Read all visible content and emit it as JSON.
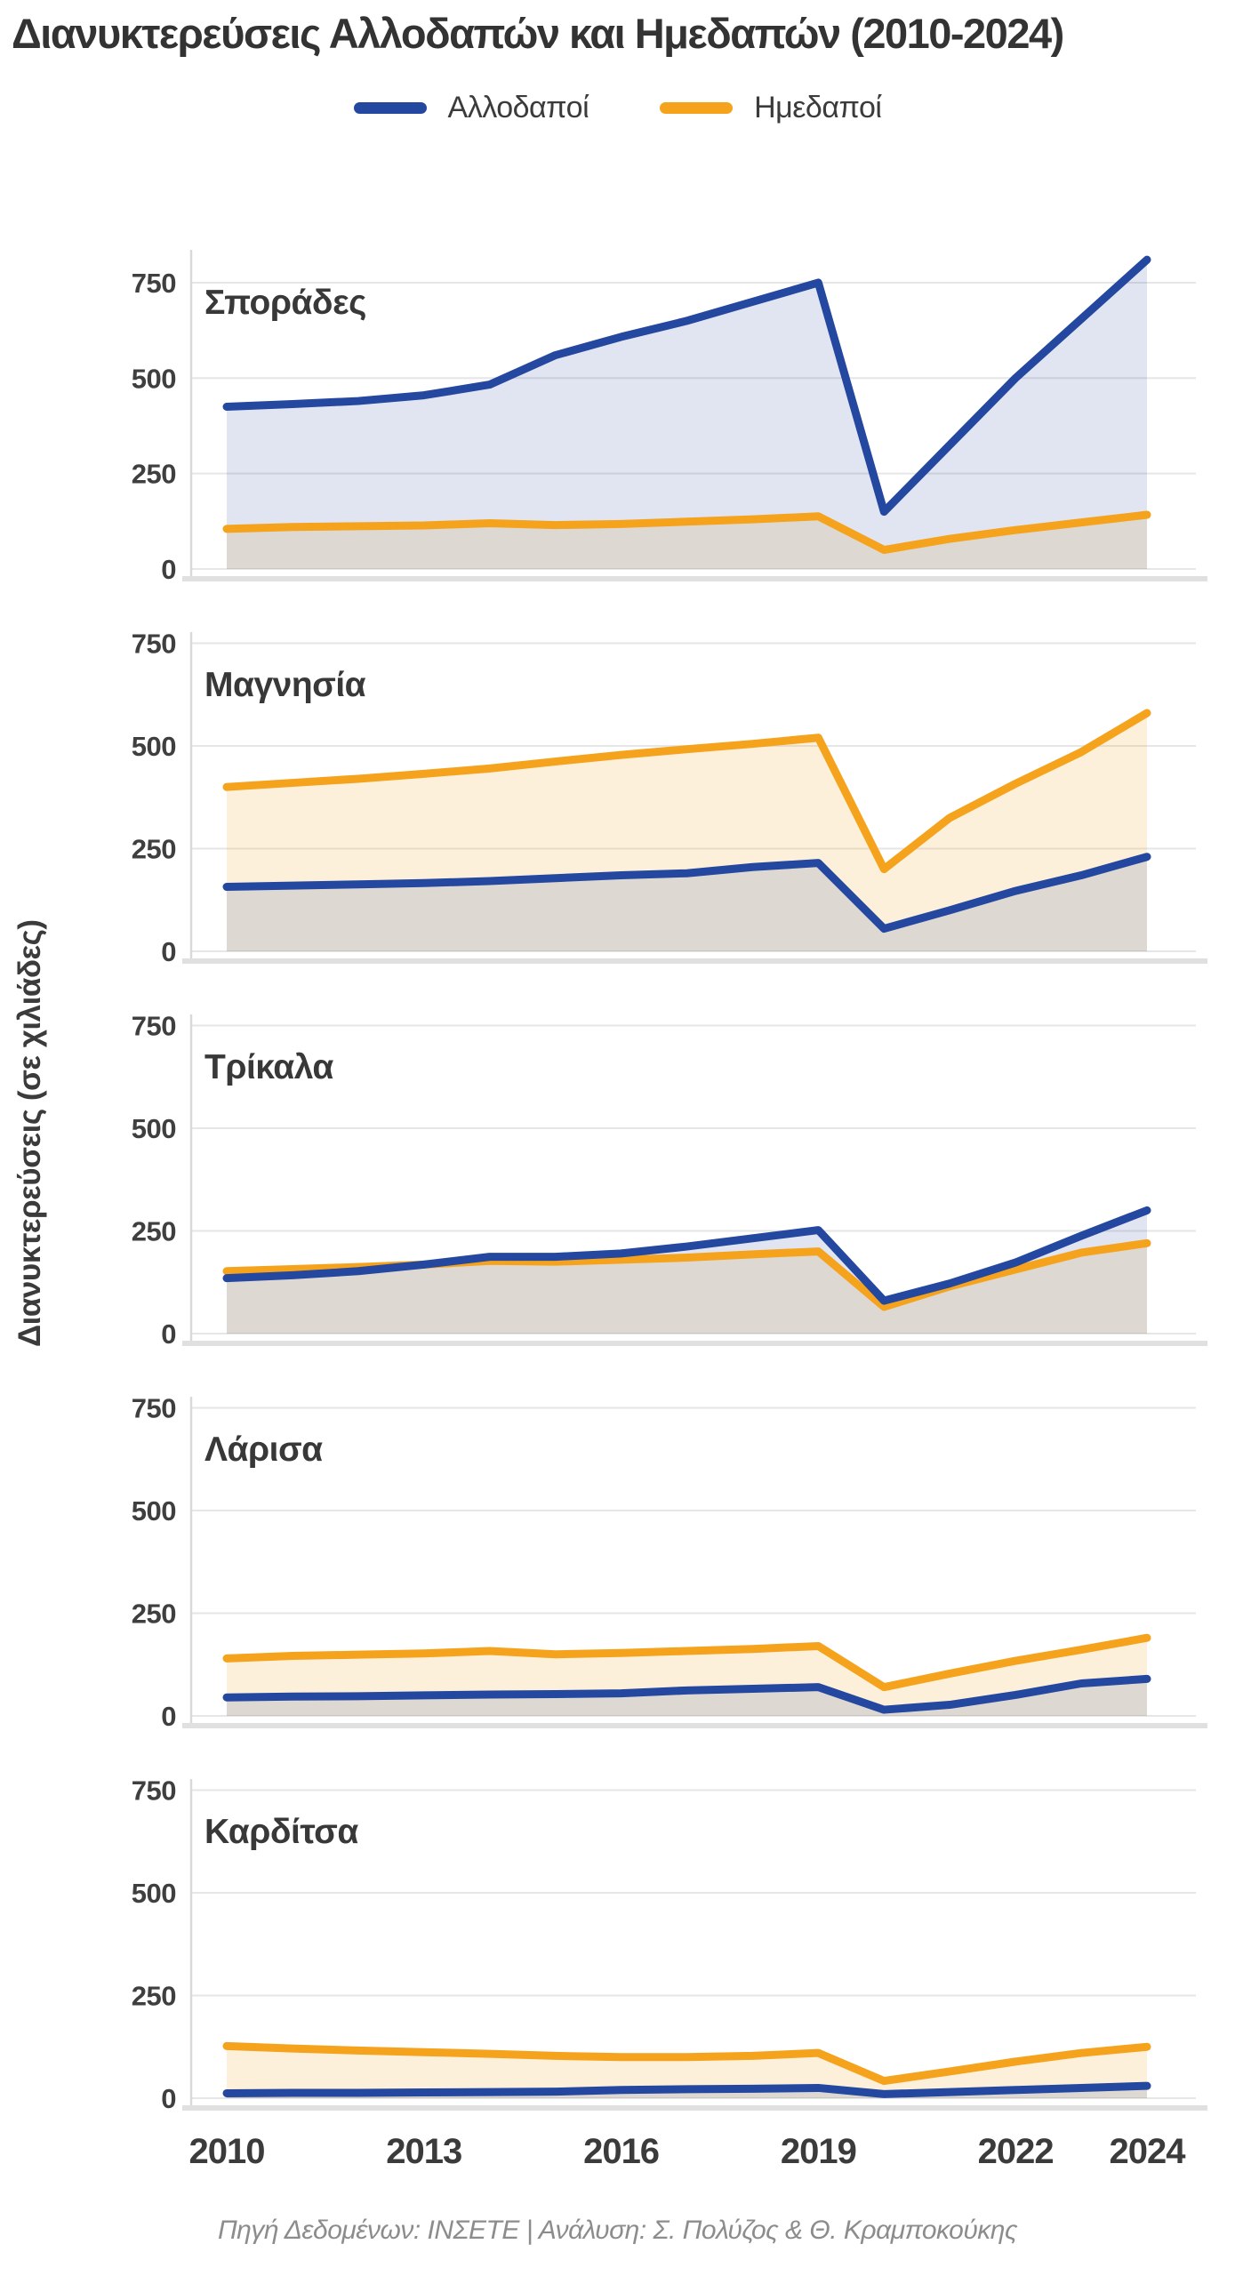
{
  "header": {
    "title": "Διανυκτερεύσεις Αλλοδαπών και Ημεδαπών (2010-2024)"
  },
  "legend": {
    "items": [
      {
        "label": "Αλλοδαποί",
        "color": "#24479F"
      },
      {
        "label": "Ημεδαποί",
        "color": "#F5A31C"
      }
    ]
  },
  "y_axis": {
    "title": "Διανυκτερεύσεις (σε χιλιάδες)",
    "ticks": [
      0,
      250,
      500,
      750
    ]
  },
  "x_axis": {
    "ticks": [
      2010,
      2013,
      2016,
      2019,
      2022,
      2024
    ]
  },
  "footer": {
    "text": "Πηγή Δεδομένων: ΙΝΣΕΤΕ | Ανάλυση: Σ. Πολύζος & Θ. Κραμποκούκης"
  },
  "colors": {
    "foreigners_line": "#24479F",
    "foreigners_fill": "rgba(36,71,159,0.14)",
    "locals_line": "#F5A31C",
    "locals_fill": "rgba(245,163,28,0.16)",
    "grid": "#e6e6e6",
    "axis_band": "#e0e0e0",
    "left_axis": "#d9d9d9"
  },
  "chart_data": [
    {
      "type": "area",
      "region": "Σποράδες",
      "x": [
        2010,
        2011,
        2012,
        2013,
        2014,
        2015,
        2016,
        2017,
        2018,
        2019,
        2020,
        2021,
        2022,
        2023,
        2024
      ],
      "ylim": [
        0,
        850
      ],
      "series": [
        {
          "name": "Αλλοδαποί",
          "values": [
            425,
            432,
            440,
            455,
            483,
            560,
            608,
            650,
            700,
            750,
            150,
            325,
            500,
            655,
            810
          ]
        },
        {
          "name": "Ημεδαποί",
          "values": [
            105,
            110,
            112,
            114,
            120,
            115,
            118,
            124,
            130,
            138,
            50,
            79,
            102,
            122,
            142
          ]
        }
      ]
    },
    {
      "type": "area",
      "region": "Μαγνησία",
      "x": [
        2010,
        2011,
        2012,
        2013,
        2014,
        2015,
        2016,
        2017,
        2018,
        2019,
        2020,
        2021,
        2022,
        2023,
        2024
      ],
      "ylim": [
        0,
        790
      ],
      "series": [
        {
          "name": "Αλλοδαποί",
          "values": [
            157,
            160,
            163,
            166,
            171,
            178,
            185,
            190,
            205,
            215,
            55,
            100,
            147,
            185,
            230
          ]
        },
        {
          "name": "Ημεδαποί",
          "values": [
            400,
            410,
            420,
            432,
            445,
            462,
            478,
            492,
            505,
            520,
            200,
            325,
            408,
            485,
            580
          ]
        }
      ]
    },
    {
      "type": "area",
      "region": "Τρίκαλα",
      "x": [
        2010,
        2011,
        2012,
        2013,
        2014,
        2015,
        2016,
        2017,
        2018,
        2019,
        2020,
        2021,
        2022,
        2023,
        2024
      ],
      "ylim": [
        0,
        790
      ],
      "series": [
        {
          "name": "Αλλοδαποί",
          "values": [
            135,
            142,
            152,
            168,
            187,
            187,
            195,
            212,
            232,
            252,
            80,
            122,
            173,
            238,
            300
          ]
        },
        {
          "name": "Ημεδαποί",
          "values": [
            152,
            157,
            162,
            168,
            177,
            175,
            180,
            185,
            193,
            200,
            65,
            115,
            156,
            197,
            220
          ]
        }
      ]
    },
    {
      "type": "area",
      "region": "Λάρισα",
      "x": [
        2010,
        2011,
        2012,
        2013,
        2014,
        2015,
        2016,
        2017,
        2018,
        2019,
        2020,
        2021,
        2022,
        2023,
        2024
      ],
      "ylim": [
        0,
        790
      ],
      "series": [
        {
          "name": "Αλλοδαποί",
          "values": [
            45,
            47,
            48,
            50,
            52,
            53,
            55,
            62,
            66,
            70,
            15,
            27,
            51,
            79,
            90
          ]
        },
        {
          "name": "Ημεδαποί",
          "values": [
            140,
            146,
            149,
            152,
            158,
            150,
            153,
            158,
            163,
            170,
            70,
            103,
            134,
            161,
            190
          ]
        }
      ]
    },
    {
      "type": "area",
      "region": "Καρδίτσα",
      "x": [
        2010,
        2011,
        2012,
        2013,
        2014,
        2015,
        2016,
        2017,
        2018,
        2019,
        2020,
        2021,
        2022,
        2023,
        2024
      ],
      "ylim": [
        0,
        790
      ],
      "series": [
        {
          "name": "Αλλοδαποί",
          "values": [
            12,
            13,
            13,
            14,
            15,
            16,
            20,
            22,
            23,
            25,
            10,
            15,
            20,
            25,
            30
          ]
        },
        {
          "name": "Ημεδαποί",
          "values": [
            127,
            121,
            116,
            112,
            108,
            103,
            100,
            100,
            103,
            110,
            42,
            65,
            89,
            110,
            125
          ]
        }
      ]
    }
  ]
}
